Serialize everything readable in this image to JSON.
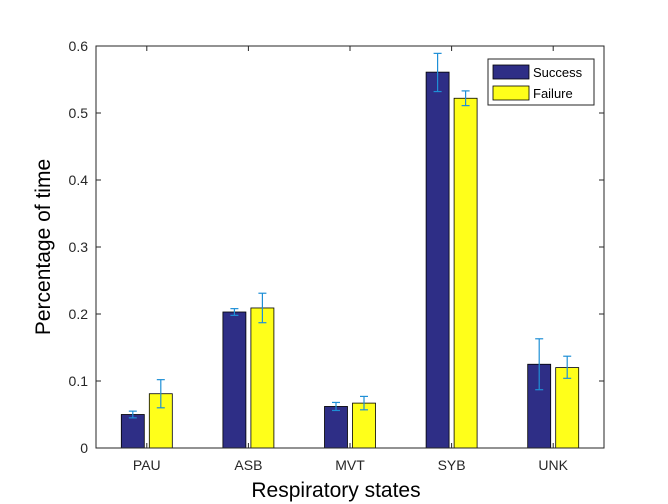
{
  "chart_data": {
    "type": "bar",
    "title": "",
    "xlabel": "Respiratory states",
    "ylabel": "Percentage of time",
    "ylim": [
      0,
      0.6
    ],
    "yticks": [
      0,
      0.1,
      0.2,
      0.3,
      0.4,
      0.5,
      0.6
    ],
    "ytick_labels": [
      "0",
      "0.1",
      "0.2",
      "0.3",
      "0.4",
      "0.5",
      "0.6"
    ],
    "categories": [
      "PAU",
      "ASB",
      "MVT",
      "SYB",
      "UNK"
    ],
    "grid": false,
    "legend_position": "top-right",
    "series": [
      {
        "name": "Success",
        "color": "#2e2e86",
        "values": [
          0.05,
          0.203,
          0.062,
          0.561,
          0.125
        ],
        "err_low": [
          0.045,
          0.198,
          0.056,
          0.532,
          0.087
        ],
        "err_high": [
          0.055,
          0.208,
          0.068,
          0.589,
          0.163
        ]
      },
      {
        "name": "Failure",
        "color": "#ffff1a",
        "values": [
          0.081,
          0.209,
          0.067,
          0.522,
          0.12
        ],
        "err_low": [
          0.06,
          0.187,
          0.057,
          0.511,
          0.104
        ],
        "err_high": [
          0.102,
          0.231,
          0.077,
          0.533,
          0.137
        ]
      }
    ],
    "error_bar_color": "#1f8fd6"
  }
}
